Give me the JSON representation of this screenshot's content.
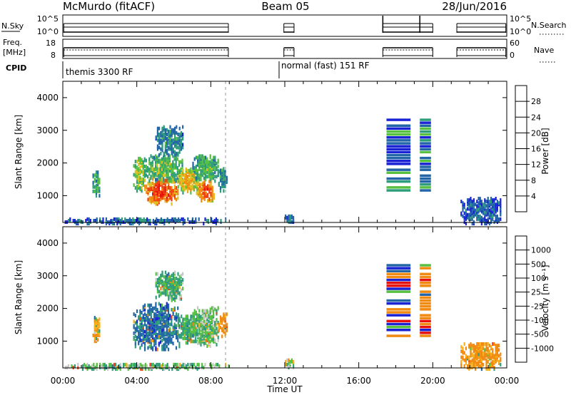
{
  "header": {
    "title": "McMurdo (fitACF)",
    "beam": "Beam 05",
    "date": "28/Jun/2016"
  },
  "nsky": {
    "label": "N.Sky",
    "ticks": [
      "10^5",
      "10^0"
    ],
    "right_label": "N.Search",
    "right_ticks": [
      "10^5",
      "10^0"
    ]
  },
  "freq": {
    "label_line1": "Freq.",
    "label_line2": "[MHz]",
    "ticks": [
      "18",
      "8"
    ],
    "right_label": "Nave",
    "right_ticks": [
      "60",
      "0"
    ]
  },
  "cpid": {
    "label": "CPID",
    "segments": [
      {
        "start_hour": 0,
        "text": "themis 3300 RF"
      },
      {
        "start_hour": 12,
        "text": "normal (fast) 151 RF"
      }
    ]
  },
  "time_axis": {
    "tick_labels": [
      "00:00",
      "04:00",
      "08:00",
      "12:00",
      "16:00",
      "20:00",
      "00:00"
    ],
    "xlabel": "Time UT"
  },
  "colors": {
    "power_scale": [
      "#1a22d6",
      "#2266a8",
      "#2f9d7a",
      "#58c040",
      "#e0c020",
      "#f08a10",
      "#ee4010",
      "#e8100c"
    ],
    "velocity_scale": [
      "#e8100c",
      "#ee4010",
      "#f08a10",
      "#f7b21a",
      "#c8c8c8",
      "#58c040",
      "#2f9d7a",
      "#2266a8",
      "#1a22d6"
    ]
  },
  "chart_data": [
    {
      "type": "heatmap",
      "name": "power",
      "xlabel": "",
      "ylabel": "Slant Range [km]",
      "xlim_hours": [
        0,
        24
      ],
      "ylim": [
        180,
        4500
      ],
      "yticks": [
        "1000",
        "2000",
        "3000",
        "4000"
      ],
      "ytick_values": [
        1000,
        2000,
        3000,
        4000
      ],
      "colorbar": {
        "label": "Power [dB]",
        "tick_labels": [
          "4",
          "8",
          "12",
          "16",
          "20",
          "24",
          "28"
        ],
        "range": [
          0,
          32
        ]
      },
      "blobs": [
        {
          "t0": 1.6,
          "t1": 2.0,
          "r0": 1050,
          "r1": 1800,
          "value": 12
        },
        {
          "t0": 3.8,
          "t1": 4.4,
          "r0": 1200,
          "r1": 2200,
          "value": 16
        },
        {
          "t0": 4.4,
          "t1": 6.2,
          "r0": 800,
          "r1": 1600,
          "value": 27
        },
        {
          "t0": 4.3,
          "t1": 6.5,
          "r0": 1500,
          "r1": 2300,
          "value": 14
        },
        {
          "t0": 6.2,
          "t1": 7.3,
          "r0": 1100,
          "r1": 1900,
          "value": 20
        },
        {
          "t0": 7.2,
          "t1": 8.2,
          "r0": 900,
          "r1": 1500,
          "value": 26
        },
        {
          "t0": 7.0,
          "t1": 8.4,
          "r0": 1500,
          "r1": 2300,
          "value": 13
        },
        {
          "t0": 8.4,
          "t1": 8.9,
          "r0": 1200,
          "r1": 1900,
          "value": 10
        },
        {
          "t0": 5.0,
          "t1": 6.5,
          "r0": 2300,
          "r1": 3200,
          "value": 9
        },
        {
          "t0": 0.1,
          "t1": 9.0,
          "r0": 200,
          "r1": 360,
          "value": 7
        },
        {
          "t0": 12.0,
          "t1": 12.5,
          "r0": 200,
          "r1": 500,
          "value": 8
        },
        {
          "t0": 21.5,
          "t1": 23.7,
          "r0": 200,
          "r1": 1000,
          "value": 6
        }
      ],
      "bands": [
        {
          "t0": 17.5,
          "t1": 18.8,
          "r0": 1200,
          "r1": 3400,
          "value": 6
        },
        {
          "t0": 19.3,
          "t1": 19.9,
          "r0": 1200,
          "r1": 3400,
          "value": 7
        }
      ]
    },
    {
      "type": "heatmap",
      "name": "velocity",
      "xlabel": "Time UT",
      "ylabel": "Slant Range [km]",
      "xlim_hours": [
        0,
        24
      ],
      "ylim": [
        180,
        4500
      ],
      "yticks": [
        "1000",
        "2000",
        "3000",
        "4000"
      ],
      "ytick_values": [
        1000,
        2000,
        3000,
        4000
      ],
      "colorbar": {
        "label": "Velocity [m s⁻¹]",
        "tick_labels": [
          "1000",
          "500",
          "100",
          "25",
          "-25",
          "-100",
          "-500",
          "-1000"
        ]
      },
      "blobs": [
        {
          "t0": 1.6,
          "t1": 2.0,
          "r0": 1050,
          "r1": 1800,
          "value": -100
        },
        {
          "t0": 3.8,
          "t1": 6.3,
          "r0": 800,
          "r1": 2200,
          "value": 700
        },
        {
          "t0": 6.2,
          "t1": 7.3,
          "r0": 1000,
          "r1": 1900,
          "value": 150
        },
        {
          "t0": 7.0,
          "t1": 8.4,
          "r0": 900,
          "r1": 2100,
          "value": 60
        },
        {
          "t0": 8.4,
          "t1": 8.9,
          "r0": 1200,
          "r1": 1900,
          "value": -200
        },
        {
          "t0": 5.0,
          "t1": 6.5,
          "r0": 2300,
          "r1": 3200,
          "value": 120
        },
        {
          "t0": 0.1,
          "t1": 9.0,
          "r0": 200,
          "r1": 360,
          "value": 60
        },
        {
          "t0": 12.0,
          "t1": 12.5,
          "r0": 200,
          "r1": 500,
          "value": 60
        },
        {
          "t0": 21.5,
          "t1": 23.7,
          "r0": 200,
          "r1": 1000,
          "value": -150
        }
      ],
      "bands": [
        {
          "t0": 17.5,
          "t1": 18.8,
          "r0": 1200,
          "r1": 3400,
          "value": -200
        },
        {
          "t0": 19.3,
          "t1": 19.9,
          "r0": 1200,
          "r1": 3400,
          "value": -150
        }
      ]
    }
  ]
}
